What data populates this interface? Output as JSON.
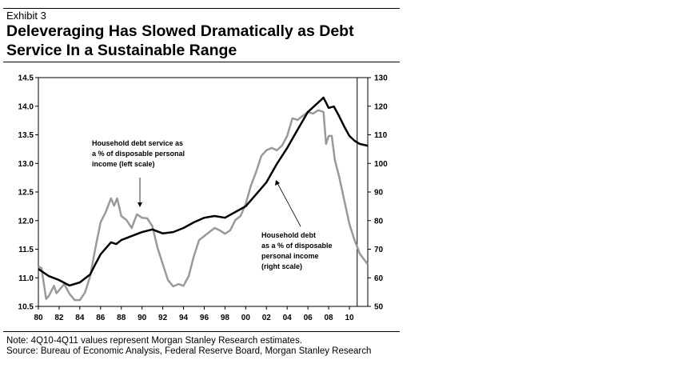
{
  "header": {
    "exhibit": "Exhibit 3",
    "title_lines": [
      "Deleveraging Has Slowed Dramatically as Debt",
      "Service In a Sustainable Range"
    ]
  },
  "footer": {
    "note": "Note: 4Q10-4Q11 values represent Morgan Stanley Research estimates.",
    "source": "Source: Bureau of Economic Analysis, Federal Reserve Board, Morgan Stanley Research"
  },
  "chart_data": {
    "type": "line",
    "title": "Deleveraging Has Slowed Dramatically as Debt Service In a Sustainable Range",
    "xlabel": "",
    "ylabel_left": "",
    "ylabel_right": "",
    "xlim": [
      1980,
      2011.75
    ],
    "ylim_left": [
      10.5,
      14.5
    ],
    "ylim_right": [
      50,
      130
    ],
    "x_ticks": [
      1980,
      1982,
      1984,
      1986,
      1988,
      1990,
      1992,
      1994,
      1996,
      1998,
      2000,
      2002,
      2004,
      2006,
      2008,
      2010
    ],
    "x_tick_labels": [
      "80",
      "82",
      "84",
      "86",
      "88",
      "90",
      "92",
      "94",
      "96",
      "98",
      "00",
      "02",
      "04",
      "06",
      "08",
      "10"
    ],
    "y_left_ticks": [
      "10.5",
      "11.0",
      "11.5",
      "12.0",
      "12.5",
      "13.0",
      "13.5",
      "14.0",
      "14.5"
    ],
    "y_right_ticks": [
      "50",
      "60",
      "70",
      "80",
      "90",
      "100",
      "110",
      "120",
      "130"
    ],
    "grid": false,
    "forecast_start": 2010.75,
    "series": [
      {
        "name": "Household debt service as a % of disposable personal income (left scale)",
        "axis": "left",
        "color": "#999999",
        "x": [
          1980.0,
          1980.3,
          1980.75,
          1981.0,
          1981.5,
          1981.75,
          1982.5,
          1983.0,
          1983.5,
          1984.0,
          1984.5,
          1985.0,
          1985.5,
          1986.0,
          1986.5,
          1987.0,
          1987.3,
          1987.6,
          1988.0,
          1988.5,
          1989.0,
          1989.5,
          1990.0,
          1990.5,
          1991.0,
          1991.5,
          1992.0,
          1992.5,
          1993.0,
          1993.5,
          1994.0,
          1994.5,
          1995.0,
          1995.5,
          1996.0,
          1996.5,
          1997.0,
          1997.5,
          1998.0,
          1998.5,
          1999.0,
          1999.5,
          2000.0,
          2000.5,
          2001.0,
          2001.5,
          2002.0,
          2002.5,
          2003.0,
          2003.5,
          2004.0,
          2004.5,
          2005.0,
          2005.5,
          2006.0,
          2006.5,
          2007.0,
          2007.5,
          2007.75,
          2008.0,
          2008.3,
          2008.6,
          2009.0,
          2009.5,
          2010.0,
          2010.5,
          2011.0,
          2011.5,
          2011.75
        ],
        "values": [
          11.2,
          11.17,
          10.63,
          10.68,
          10.86,
          10.73,
          10.89,
          10.72,
          10.61,
          10.61,
          10.74,
          11.03,
          11.52,
          11.97,
          12.15,
          12.39,
          12.26,
          12.39,
          12.08,
          12.01,
          11.87,
          12.11,
          12.05,
          12.04,
          11.9,
          11.52,
          11.24,
          10.96,
          10.85,
          10.89,
          10.86,
          11.03,
          11.38,
          11.66,
          11.73,
          11.8,
          11.87,
          11.83,
          11.77,
          11.83,
          12.01,
          12.08,
          12.29,
          12.61,
          12.85,
          13.13,
          13.23,
          13.27,
          13.23,
          13.31,
          13.48,
          13.79,
          13.76,
          13.83,
          13.9,
          13.87,
          13.93,
          13.9,
          13.34,
          13.48,
          13.48,
          13.06,
          12.78,
          12.36,
          11.94,
          11.66,
          11.42,
          11.3,
          11.24
        ]
      },
      {
        "name": "Household debt as a % of disposable personal income (right scale)",
        "axis": "right",
        "color": "#000000",
        "x": [
          1980.0,
          1981.0,
          1982.0,
          1983.0,
          1984.0,
          1985.0,
          1985.5,
          1986.0,
          1987.0,
          1987.5,
          1988.0,
          1989.0,
          1990.0,
          1991.0,
          1992.0,
          1993.0,
          1994.0,
          1995.0,
          1996.0,
          1997.0,
          1998.0,
          1999.0,
          2000.0,
          2001.0,
          2002.0,
          2003.0,
          2004.0,
          2005.0,
          2006.0,
          2007.0,
          2007.5,
          2008.0,
          2008.5,
          2009.0,
          2009.5,
          2010.0,
          2010.5,
          2011.0,
          2011.75
        ],
        "values": [
          63.1,
          60.6,
          59.2,
          57.3,
          58.4,
          61.2,
          64.8,
          68.2,
          72.4,
          71.8,
          73.2,
          74.6,
          76.0,
          76.9,
          75.5,
          76.0,
          77.4,
          79.4,
          81.0,
          81.6,
          81.0,
          83.0,
          85.0,
          89.2,
          93.4,
          99.8,
          105.4,
          111.8,
          118.0,
          121.3,
          123.0,
          119.4,
          119.9,
          116.6,
          112.9,
          109.6,
          107.9,
          106.8,
          106.2
        ]
      }
    ],
    "annotations": [
      {
        "id": "debt-service",
        "lines": [
          "Household debt service as",
          "a % of disposable personal",
          "income (left scale)"
        ],
        "points_to": {
          "x": 1989.7,
          "series": 0
        }
      },
      {
        "id": "household-debt",
        "lines": [
          "Household debt",
          "as a % of disposable",
          "personal income",
          "(right scale)"
        ],
        "points_to": {
          "x": 2002.3,
          "series": 1
        }
      }
    ]
  }
}
